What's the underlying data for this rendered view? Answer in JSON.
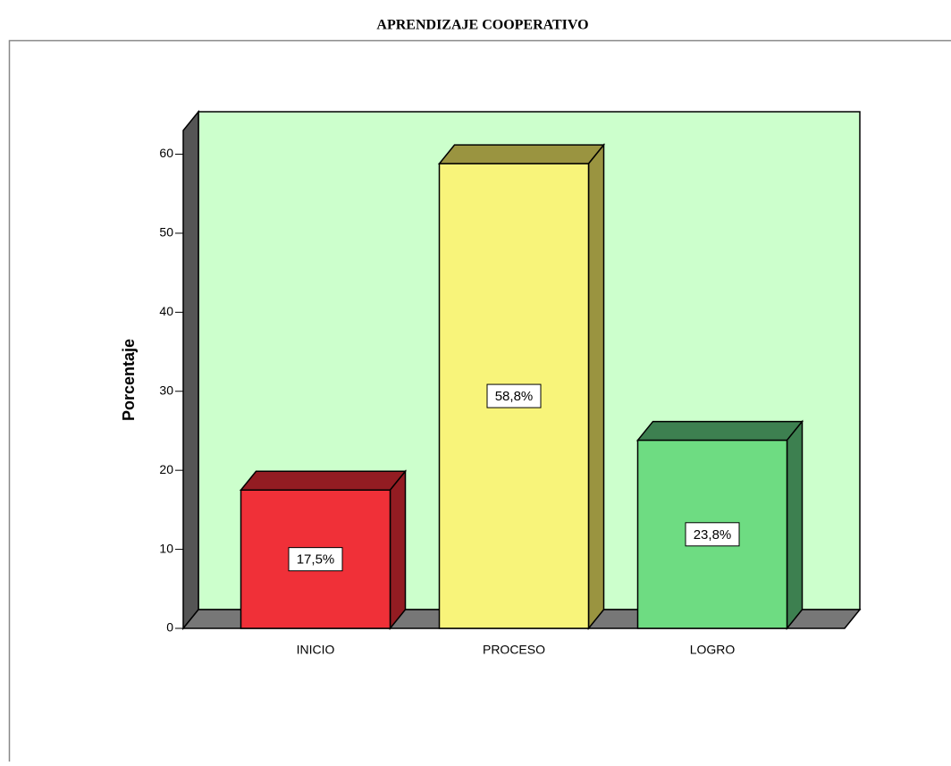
{
  "chart_data": {
    "type": "bar3d",
    "title": "APRENDIZAJE COOPERATIVO",
    "ylabel": "Porcentaje",
    "categories": [
      "INICIO",
      "PROCESO",
      "LOGRO"
    ],
    "values": [
      17.5,
      58.8,
      23.8
    ],
    "value_labels": [
      "17,5%",
      "58,8%",
      "23,8%"
    ],
    "colors": [
      "#f03038",
      "#f8f47a",
      "#6edc82"
    ],
    "shade_colors": [
      "#931c22",
      "#9a9440",
      "#3d8050"
    ],
    "ylim": [
      0,
      63
    ],
    "yticks": [
      0,
      10,
      20,
      30,
      40,
      50,
      60
    ],
    "background": "#ccffcc"
  }
}
